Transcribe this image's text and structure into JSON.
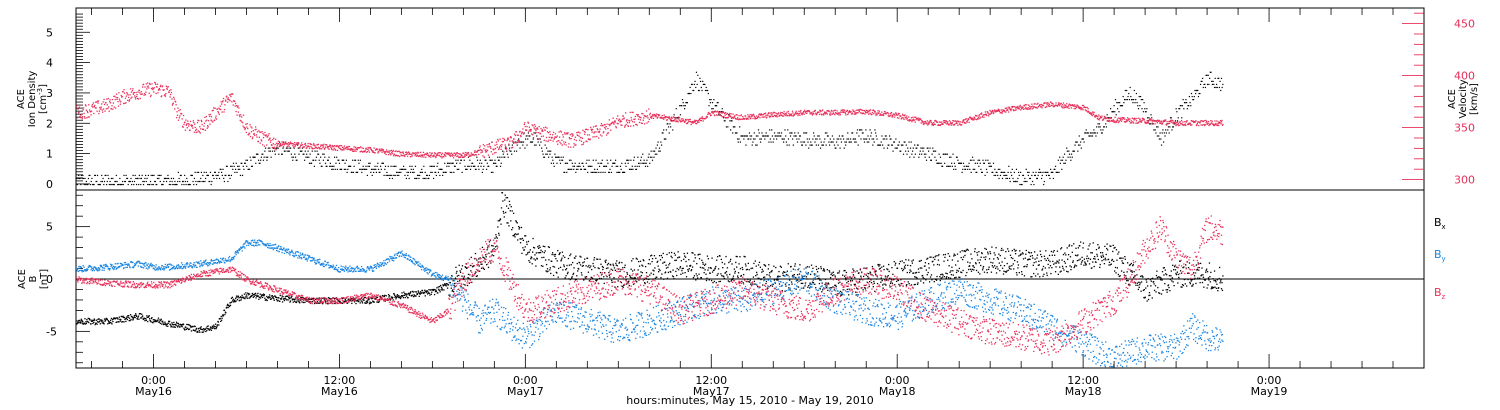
{
  "colors": {
    "black": "#000000",
    "pink": "#e8305a",
    "blue": "#1a85e0"
  },
  "chart_data": [
    {
      "type": "scatter",
      "title": "",
      "xlabel": "",
      "ylabel": "ACE Ion Density [cm^-3]",
      "ylabel_lines": [
        "ACE",
        "Ion Density",
        "[cm",
        "-3",
        "]"
      ],
      "ylim": [
        -0.2,
        5.8
      ],
      "yticks": [
        0,
        1,
        2,
        3,
        4,
        5
      ],
      "y2label_lines": [
        "ACE",
        "Velocity",
        "[km/s]"
      ],
      "y2lim": [
        290,
        465
      ],
      "y2ticks": [
        300,
        350,
        400,
        450
      ],
      "x_range_hours": [
        -5,
        82
      ],
      "series": [
        {
          "axis": "left",
          "color": "#000000",
          "points": [
            [
              -5,
              0.1
            ],
            [
              -2,
              0.1
            ],
            [
              1,
              0.1
            ],
            [
              3,
              0.2
            ],
            [
              5,
              0.4
            ],
            [
              6,
              0.6
            ],
            [
              7,
              1.0
            ],
            [
              8,
              1.2
            ],
            [
              10,
              0.9
            ],
            [
              12,
              0.7
            ],
            [
              14,
              0.5
            ],
            [
              16,
              0.4
            ],
            [
              18,
              0.4
            ],
            [
              20,
              0.7
            ],
            [
              22,
              0.6
            ],
            [
              23.5,
              1.4
            ],
            [
              24.5,
              1.5
            ],
            [
              26,
              0.7
            ],
            [
              28,
              0.6
            ],
            [
              30,
              0.6
            ],
            [
              32,
              0.8
            ],
            [
              34,
              2.5
            ],
            [
              35,
              3.5
            ],
            [
              36,
              2.7
            ],
            [
              38,
              1.5
            ],
            [
              40,
              1.6
            ],
            [
              42,
              1.5
            ],
            [
              44,
              1.4
            ],
            [
              46,
              1.6
            ],
            [
              48,
              1.3
            ],
            [
              50,
              1.0
            ],
            [
              52,
              0.7
            ],
            [
              54,
              0.5
            ],
            [
              56,
              0.2
            ],
            [
              58,
              0.3
            ],
            [
              59,
              1.0
            ],
            [
              60,
              1.5
            ],
            [
              61,
              1.8
            ],
            [
              62,
              2.5
            ],
            [
              63,
              3.0
            ],
            [
              64,
              2.5
            ],
            [
              65,
              1.5
            ],
            [
              66,
              2.3
            ],
            [
              67,
              2.8
            ],
            [
              68,
              3.5
            ],
            [
              69,
              3.3
            ]
          ]
        },
        {
          "axis": "right",
          "color": "#e8305a",
          "points": [
            [
              -5,
              365
            ],
            [
              -4,
              368
            ],
            [
              -3,
              372
            ],
            [
              -2,
              380
            ],
            [
              -1,
              385
            ],
            [
              0,
              388
            ],
            [
              1,
              385
            ],
            [
              1.5,
              365
            ],
            [
              2,
              355
            ],
            [
              3,
              350
            ],
            [
              4,
              365
            ],
            [
              5,
              380
            ],
            [
              6,
              350
            ],
            [
              7,
              340
            ],
            [
              8,
              335
            ],
            [
              10,
              333
            ],
            [
              12,
              331
            ],
            [
              14,
              329
            ],
            [
              16,
              325
            ],
            [
              18,
              324
            ],
            [
              20,
              324
            ],
            [
              21,
              327
            ],
            [
              22,
              332
            ],
            [
              23,
              335
            ],
            [
              24,
              350
            ],
            [
              25,
              345
            ],
            [
              27,
              338
            ],
            [
              29,
              348
            ],
            [
              30,
              357
            ],
            [
              32,
              362
            ],
            [
              34,
              358
            ],
            [
              35,
              355
            ],
            [
              36,
              365
            ],
            [
              38,
              360
            ],
            [
              40,
              363
            ],
            [
              42,
              365
            ],
            [
              44,
              365
            ],
            [
              46,
              366
            ],
            [
              48,
              362
            ],
            [
              50,
              355
            ],
            [
              52,
              355
            ],
            [
              54,
              365
            ],
            [
              56,
              370
            ],
            [
              58,
              373
            ],
            [
              60,
              370
            ],
            [
              61,
              360
            ],
            [
              62,
              358
            ],
            [
              64,
              357
            ],
            [
              66,
              355
            ],
            [
              68,
              355
            ],
            [
              69,
              355
            ]
          ]
        }
      ]
    },
    {
      "type": "scatter",
      "title": "",
      "xlabel": "hours:minutes, May 15, 2010 - May 19, 2010",
      "ylabel": "ACE B [nT]",
      "ylabel_lines": [
        "ACE",
        "B",
        "[nT]"
      ],
      "ylim": [
        -8.5,
        8.5
      ],
      "yticks": [
        -5,
        0,
        5
      ],
      "x_tick_hours": [
        0,
        12,
        24,
        36,
        48,
        60,
        72
      ],
      "x_tick_labels": [
        [
          "0:00",
          "May16"
        ],
        [
          "12:00",
          "May16"
        ],
        [
          "0:00",
          "May17"
        ],
        [
          "12:00",
          "May17"
        ],
        [
          "0:00",
          "May18"
        ],
        [
          "12:00",
          "May18"
        ],
        [
          "0:00",
          "May19"
        ]
      ],
      "legend": [
        "B",
        "B",
        "B"
      ],
      "legend_subs": [
        "x",
        "y",
        "z"
      ],
      "series": [
        {
          "name": "Bx",
          "color": "#000000",
          "points": [
            [
              -5,
              -4.0
            ],
            [
              -3,
              -4.0
            ],
            [
              -1,
              -3.5
            ],
            [
              1,
              -4.2
            ],
            [
              3,
              -4.8
            ],
            [
              4,
              -4.5
            ],
            [
              5,
              -2.0
            ],
            [
              6,
              -1.5
            ],
            [
              8,
              -1.8
            ],
            [
              10,
              -2.0
            ],
            [
              12,
              -2.0
            ],
            [
              14,
              -2.0
            ],
            [
              16,
              -1.5
            ],
            [
              18,
              -1.2
            ],
            [
              19,
              -0.5
            ],
            [
              20,
              0.5
            ],
            [
              21,
              1.5
            ],
            [
              22,
              3.0
            ],
            [
              22.5,
              7.5
            ],
            [
              23,
              6.0
            ],
            [
              24,
              3.0
            ],
            [
              26,
              1.5
            ],
            [
              28,
              1.0
            ],
            [
              30,
              0.5
            ],
            [
              32,
              1.0
            ],
            [
              34,
              1.5
            ],
            [
              36,
              1.0
            ],
            [
              38,
              1.0
            ],
            [
              40,
              0.0
            ],
            [
              42,
              0.5
            ],
            [
              44,
              -0.5
            ],
            [
              46,
              0.0
            ],
            [
              48,
              0.5
            ],
            [
              50,
              1.0
            ],
            [
              52,
              1.5
            ],
            [
              54,
              2.0
            ],
            [
              56,
              1.5
            ],
            [
              58,
              1.5
            ],
            [
              60,
              2.5
            ],
            [
              62,
              2.0
            ],
            [
              63,
              0.5
            ],
            [
              64,
              -1.0
            ],
            [
              66,
              0.5
            ],
            [
              68,
              0.5
            ],
            [
              69,
              0.0
            ]
          ]
        },
        {
          "name": "By",
          "color": "#1a85e0",
          "points": [
            [
              -5,
              1.0
            ],
            [
              -3,
              1.2
            ],
            [
              -1,
              1.5
            ],
            [
              0,
              1.2
            ],
            [
              1,
              1.2
            ],
            [
              3,
              1.5
            ],
            [
              5,
              2.0
            ],
            [
              6,
              3.5
            ],
            [
              7,
              3.5
            ],
            [
              8,
              3.0
            ],
            [
              10,
              2.0
            ],
            [
              12,
              1.0
            ],
            [
              14,
              1.0
            ],
            [
              16,
              2.5
            ],
            [
              17,
              1.5
            ],
            [
              18,
              0.5
            ],
            [
              19,
              0.0
            ],
            [
              20,
              -2.0
            ],
            [
              21,
              -4.0
            ],
            [
              22,
              -3.0
            ],
            [
              23,
              -4.5
            ],
            [
              24,
              -5.5
            ],
            [
              26,
              -3.0
            ],
            [
              28,
              -4.0
            ],
            [
              30,
              -5.0
            ],
            [
              32,
              -4.0
            ],
            [
              34,
              -3.0
            ],
            [
              36,
              -2.0
            ],
            [
              38,
              -2.0
            ],
            [
              40,
              -1.0
            ],
            [
              42,
              0.0
            ],
            [
              44,
              -2.0
            ],
            [
              46,
              -3.0
            ],
            [
              48,
              -3.5
            ],
            [
              50,
              -2.0
            ],
            [
              52,
              -1.0
            ],
            [
              54,
              -2.0
            ],
            [
              56,
              -3.0
            ],
            [
              58,
              -4.5
            ],
            [
              60,
              -6.0
            ],
            [
              61,
              -7.0
            ],
            [
              62,
              -7.5
            ],
            [
              64,
              -6.5
            ],
            [
              66,
              -6.5
            ],
            [
              67,
              -4.5
            ],
            [
              68,
              -5.5
            ],
            [
              69,
              -6.0
            ]
          ]
        },
        {
          "name": "Bz",
          "color": "#e8305a",
          "points": [
            [
              -5,
              0.0
            ],
            [
              -3,
              -0.3
            ],
            [
              -1,
              -0.5
            ],
            [
              1,
              -0.5
            ],
            [
              3,
              0.5
            ],
            [
              5,
              1.0
            ],
            [
              6,
              0.0
            ],
            [
              8,
              -1.0
            ],
            [
              10,
              -2.0
            ],
            [
              12,
              -2.0
            ],
            [
              14,
              -1.5
            ],
            [
              16,
              -2.5
            ],
            [
              18,
              -4.0
            ],
            [
              19,
              -3.0
            ],
            [
              20,
              0.0
            ],
            [
              21,
              2.0
            ],
            [
              22,
              3.0
            ],
            [
              23,
              0.0
            ],
            [
              24,
              -3.0
            ],
            [
              26,
              -2.0
            ],
            [
              28,
              -1.0
            ],
            [
              30,
              0.0
            ],
            [
              32,
              -1.0
            ],
            [
              34,
              -3.0
            ],
            [
              36,
              -2.0
            ],
            [
              38,
              -1.0
            ],
            [
              40,
              -2.0
            ],
            [
              42,
              -3.0
            ],
            [
              44,
              -1.0
            ],
            [
              46,
              0.0
            ],
            [
              48,
              -1.0
            ],
            [
              50,
              -3.0
            ],
            [
              52,
              -4.0
            ],
            [
              54,
              -5.0
            ],
            [
              56,
              -5.5
            ],
            [
              58,
              -6.0
            ],
            [
              60,
              -4.0
            ],
            [
              62,
              -2.0
            ],
            [
              63,
              0.0
            ],
            [
              64,
              3.0
            ],
            [
              65,
              5.0
            ],
            [
              66,
              2.0
            ],
            [
              67,
              1.0
            ],
            [
              68,
              5.0
            ],
            [
              69,
              4.5
            ]
          ]
        }
      ]
    }
  ]
}
